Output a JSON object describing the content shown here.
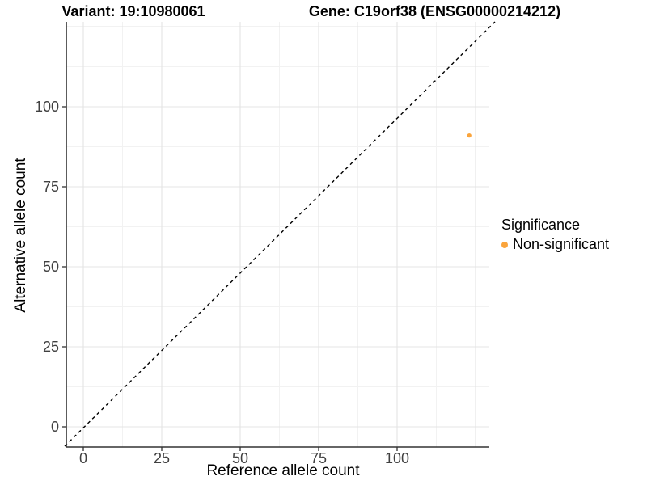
{
  "titles": {
    "variant": "Variant: 19:10980061",
    "gene": "Gene: C19orf38 (ENSG00000214212)"
  },
  "chart_data": {
    "type": "scatter",
    "xlabel": "Reference allele count",
    "ylabel": "Alternative allele count",
    "x_ticks": [
      0,
      25,
      50,
      75,
      100
    ],
    "y_ticks": [
      0,
      25,
      50,
      75,
      100
    ],
    "xlim": [
      -5.5,
      129.5
    ],
    "ylim": [
      -6.3,
      126.5
    ],
    "grid": "major-and-minor",
    "reference_line": {
      "equation": "y = x",
      "style": "dashed",
      "color": "#000000"
    },
    "series": [
      {
        "name": "Non-significant",
        "color": "#FAA43C",
        "points": [
          {
            "x": 123,
            "y": 91
          }
        ]
      }
    ],
    "legend": {
      "position": "right",
      "title": "Significance",
      "items": [
        {
          "label": "Non-significant",
          "color": "#FAA43C"
        }
      ]
    },
    "colors": {
      "grid_major": "#E4E4E4",
      "grid_minor": "#F2F2F2",
      "axis": "#333333",
      "tick_label": "#404040",
      "background": "#FFFFFF"
    }
  }
}
